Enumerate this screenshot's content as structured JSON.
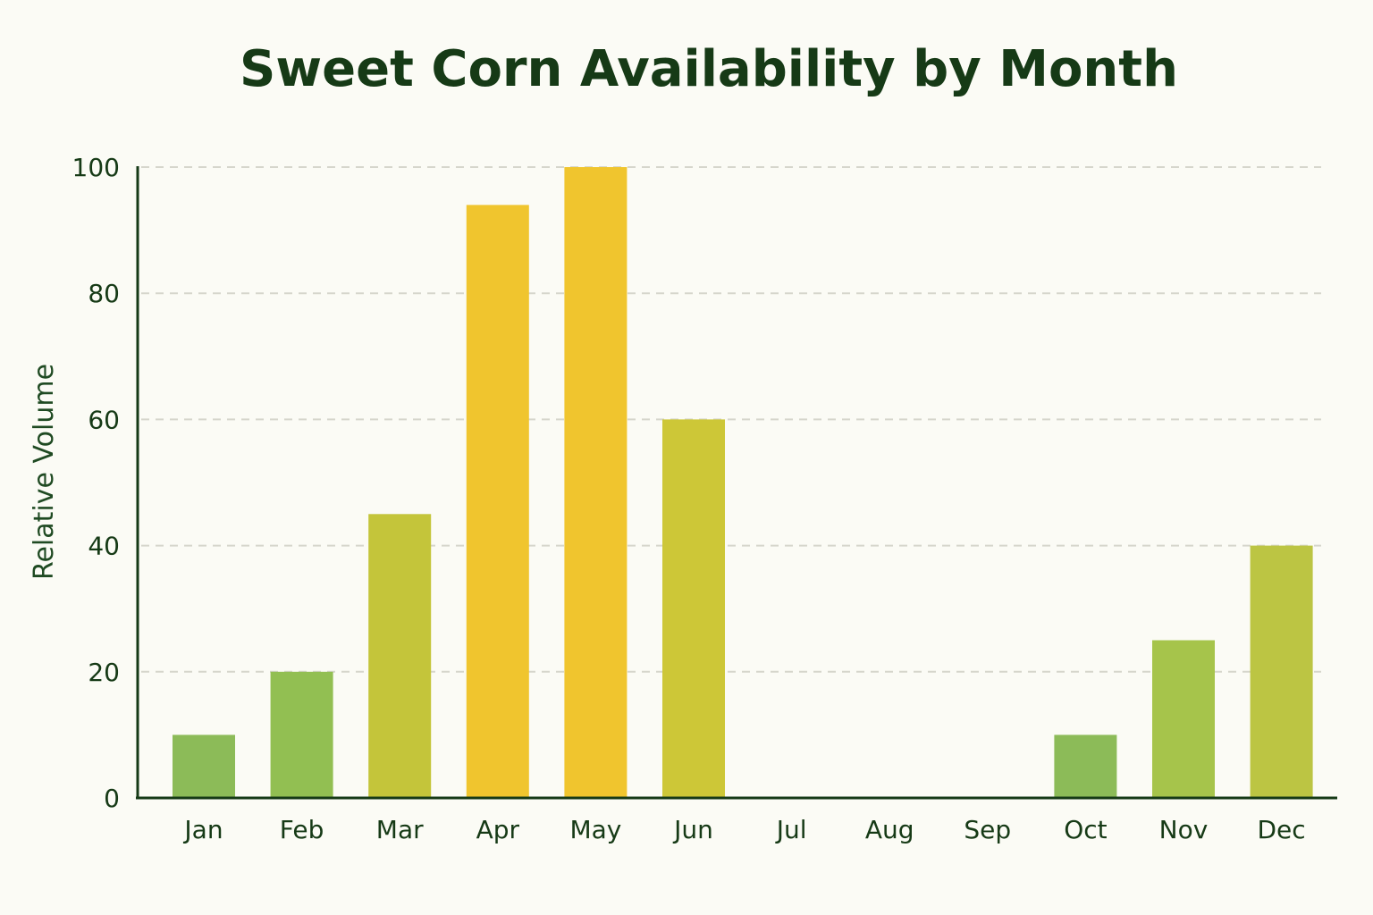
{
  "chart_data": {
    "type": "bar",
    "title": "Sweet Corn Availability by Month",
    "xlabel": "",
    "ylabel": "Relative Volume",
    "categories": [
      "Jan",
      "Feb",
      "Mar",
      "Apr",
      "May",
      "Jun",
      "Jul",
      "Aug",
      "Sep",
      "Oct",
      "Nov",
      "Dec"
    ],
    "values": [
      10,
      20,
      45,
      94,
      100,
      60,
      0,
      0,
      0,
      10,
      25,
      40
    ],
    "ylim": [
      0,
      100
    ],
    "yticks": [
      0,
      20,
      40,
      60,
      80,
      100
    ],
    "grid": true,
    "legend": "none",
    "bar_colors": [
      "#8cbb58",
      "#92bf52",
      "#c4c53a",
      "#f0c52e",
      "#f0c52e",
      "#cdc737",
      "#cdc737",
      "#cdc737",
      "#cdc737",
      "#8cbb58",
      "#a6c44b",
      "#bcc543"
    ],
    "colors": {
      "background": "#fbfbf5",
      "text": "#163a16",
      "grid": "#d6d6cc"
    }
  }
}
